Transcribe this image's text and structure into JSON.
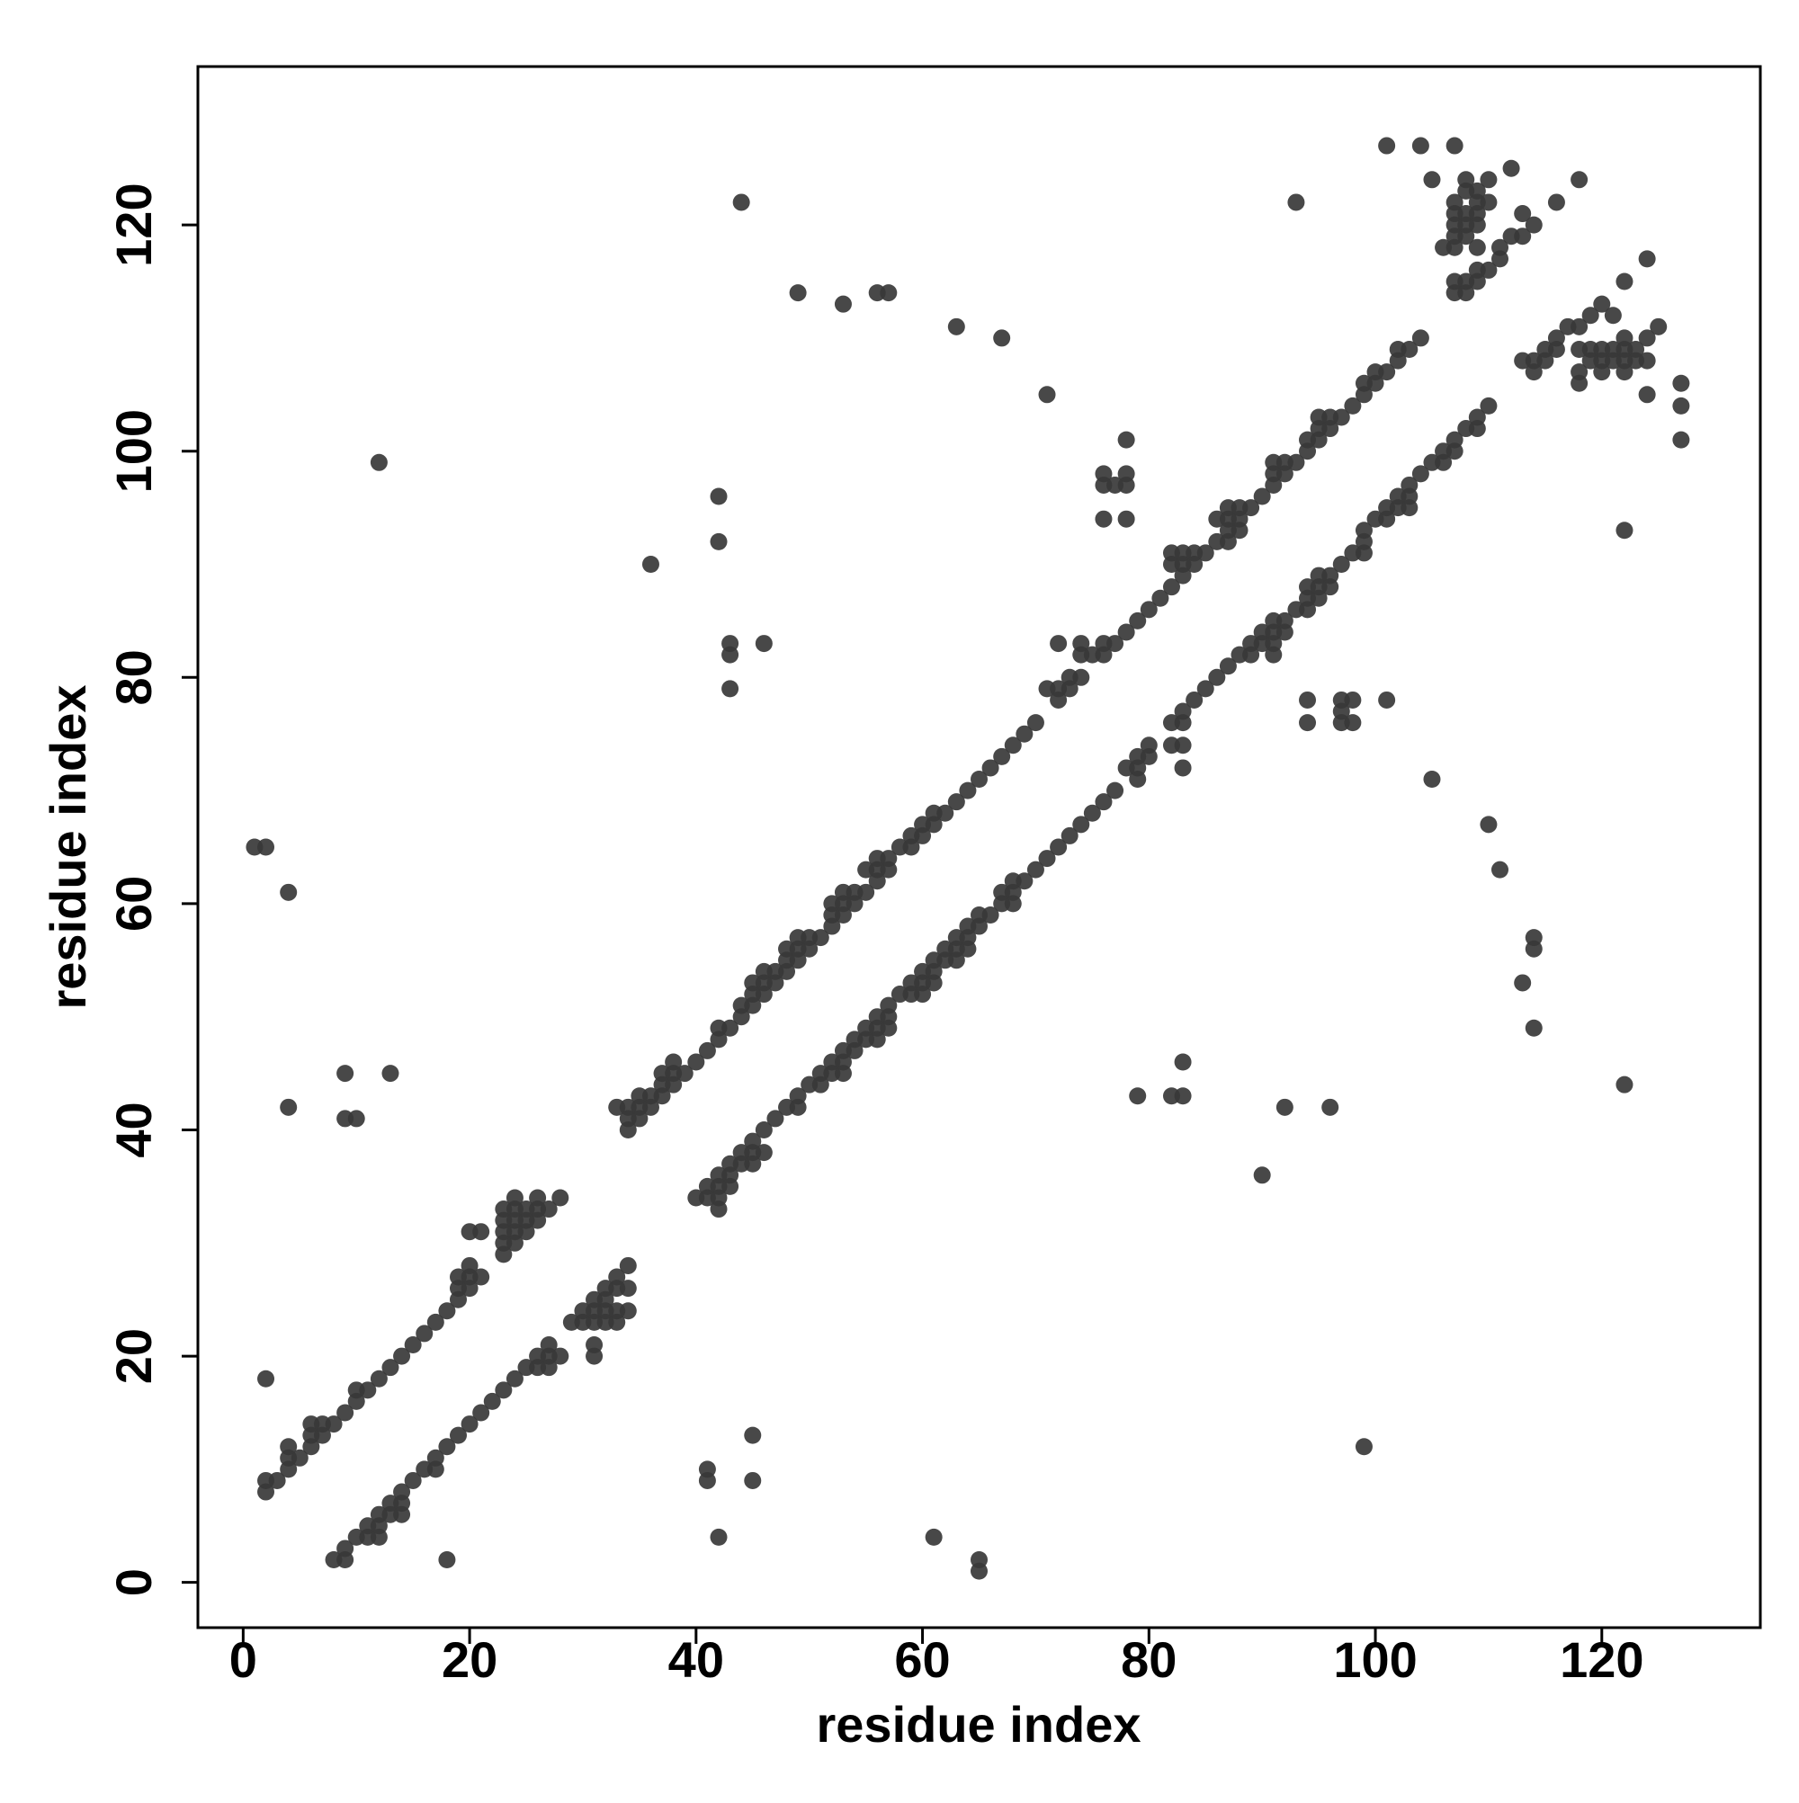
{
  "chart_data": {
    "type": "scatter",
    "xlabel": "residue index",
    "ylabel": "residue index",
    "color": "#383838",
    "xlim": [
      -4,
      134
    ],
    "ylim": [
      -4,
      134
    ],
    "xticks": [
      0,
      20,
      40,
      60,
      80,
      100,
      120
    ],
    "yticks": [
      0,
      20,
      40,
      60,
      80,
      100,
      120
    ],
    "grid": false,
    "x": [
      2,
      2,
      3,
      4,
      4,
      4,
      5,
      6,
      6,
      6,
      7,
      7,
      8,
      9,
      10,
      10,
      11,
      12,
      13,
      14,
      15,
      16,
      17,
      18,
      19,
      19,
      19,
      20,
      20,
      20,
      21,
      20,
      21,
      23,
      23,
      23,
      23,
      23,
      24,
      24,
      24,
      24,
      24,
      25,
      25,
      25,
      26,
      26,
      26,
      27,
      28,
      33,
      34,
      34,
      34,
      35,
      35,
      35,
      36,
      36,
      37,
      37,
      37,
      38,
      38,
      38,
      39,
      40,
      41,
      42,
      42,
      43,
      44,
      44,
      45,
      45,
      45,
      46,
      46,
      46,
      47,
      47,
      48,
      48,
      48,
      49,
      49,
      49,
      50,
      50,
      51,
      52,
      52,
      52,
      53,
      53,
      53,
      54,
      54,
      55,
      55,
      56,
      56,
      56,
      57,
      57,
      58,
      59,
      59,
      60,
      60,
      61,
      61,
      62,
      63,
      64,
      65,
      66,
      67,
      68,
      69,
      70,
      71,
      72,
      72,
      72,
      73,
      73,
      74,
      74,
      74,
      75,
      76,
      76,
      77,
      78,
      79,
      80,
      81,
      82,
      82,
      82,
      83,
      83,
      83,
      84,
      84,
      85,
      86,
      86,
      87,
      87,
      87,
      87,
      88,
      88,
      88,
      89,
      90,
      91,
      91,
      91,
      92,
      92,
      93,
      94,
      94,
      95,
      95,
      95,
      96,
      96,
      97,
      98,
      99,
      99,
      100,
      100,
      101,
      102,
      102,
      103,
      104,
      8,
      9,
      9,
      10,
      11,
      11,
      12,
      12,
      12,
      13,
      13,
      14,
      14,
      14,
      15,
      16,
      17,
      17,
      18,
      19,
      20,
      21,
      22,
      23,
      24,
      25,
      26,
      26,
      27,
      27,
      27,
      28,
      29,
      30,
      30,
      31,
      31,
      31,
      31,
      31,
      32,
      32,
      32,
      32,
      33,
      33,
      33,
      33,
      34,
      34,
      34,
      40,
      41,
      41,
      42,
      42,
      42,
      42,
      43,
      43,
      43,
      44,
      44,
      45,
      45,
      45,
      46,
      46,
      47,
      48,
      49,
      49,
      50,
      51,
      51,
      52,
      52,
      53,
      53,
      53,
      54,
      54,
      55,
      55,
      56,
      56,
      56,
      57,
      57,
      57,
      58,
      59,
      59,
      60,
      60,
      60,
      61,
      61,
      61,
      62,
      62,
      63,
      63,
      63,
      64,
      64,
      64,
      65,
      65,
      66,
      67,
      67,
      68,
      68,
      68,
      69,
      70,
      71,
      72,
      73,
      74,
      75,
      76,
      77,
      78,
      79,
      79,
      79,
      80,
      80,
      82,
      82,
      83,
      83,
      83,
      83,
      84,
      85,
      86,
      87,
      88,
      89,
      89,
      90,
      90,
      91,
      91,
      91,
      91,
      92,
      92,
      93,
      94,
      94,
      94,
      95,
      95,
      95,
      96,
      96,
      97,
      98,
      99,
      99,
      99,
      100,
      101,
      101,
      102,
      102,
      103,
      103,
      103,
      104,
      105,
      106,
      106,
      107,
      107,
      108,
      109,
      109,
      110,
      107,
      107,
      107,
      107,
      107,
      107,
      107,
      108,
      108,
      108,
      108,
      108,
      108,
      108,
      109,
      109,
      109,
      109,
      109,
      109,
      109,
      110,
      110,
      110,
      106,
      105,
      104,
      101,
      107,
      112,
      111,
      111,
      112,
      113,
      113,
      114,
      116,
      118,
      113,
      114,
      114,
      115,
      115,
      116,
      116,
      117,
      118,
      118,
      118,
      118,
      119,
      119,
      119,
      120,
      120,
      120,
      120,
      121,
      121,
      122,
      122,
      122,
      122,
      123,
      123,
      124,
      124,
      124,
      121,
      122,
      124,
      125,
      127,
      127,
      127,
      1,
      2,
      4,
      2,
      4,
      9,
      10,
      9,
      13,
      12,
      18,
      36,
      42,
      42,
      43,
      43,
      43,
      46,
      44,
      49,
      53,
      56,
      57,
      63,
      67,
      71,
      76,
      76,
      76,
      77,
      78,
      78,
      78,
      78,
      93,
      41,
      41,
      42,
      45,
      45,
      61,
      65,
      65,
      79,
      82,
      83,
      83,
      90,
      92,
      96,
      94,
      94,
      97,
      97,
      97,
      98,
      98,
      101,
      105,
      110,
      111,
      114,
      114,
      113,
      114,
      122,
      122,
      99
    ],
    "values": [
      8,
      9,
      9,
      10,
      11,
      12,
      11,
      12,
      13,
      14,
      13,
      14,
      14,
      15,
      16,
      17,
      17,
      18,
      19,
      20,
      21,
      22,
      23,
      24,
      25,
      26,
      27,
      26,
      27,
      28,
      27,
      31,
      31,
      29,
      30,
      31,
      32,
      33,
      30,
      31,
      32,
      33,
      34,
      31,
      32,
      33,
      32,
      33,
      34,
      33,
      34,
      42,
      40,
      41,
      42,
      41,
      42,
      43,
      42,
      43,
      43,
      44,
      45,
      44,
      45,
      46,
      45,
      46,
      47,
      48,
      49,
      49,
      50,
      51,
      51,
      52,
      53,
      52,
      53,
      54,
      53,
      54,
      54,
      55,
      56,
      55,
      56,
      57,
      56,
      57,
      57,
      58,
      59,
      60,
      59,
      60,
      61,
      60,
      61,
      61,
      63,
      62,
      63,
      64,
      63,
      64,
      65,
      65,
      66,
      66,
      67,
      67,
      68,
      68,
      69,
      70,
      71,
      72,
      73,
      74,
      75,
      76,
      79,
      78,
      79,
      83,
      79,
      80,
      80,
      82,
      83,
      82,
      82,
      83,
      83,
      84,
      85,
      86,
      87,
      88,
      90,
      91,
      89,
      90,
      91,
      90,
      91,
      91,
      92,
      94,
      92,
      93,
      94,
      95,
      93,
      94,
      95,
      95,
      96,
      97,
      98,
      99,
      98,
      99,
      99,
      100,
      101,
      101,
      102,
      103,
      102,
      103,
      103,
      104,
      105,
      106,
      106,
      107,
      107,
      108,
      109,
      109,
      110,
      2,
      2,
      3,
      4,
      4,
      5,
      4,
      5,
      6,
      6,
      7,
      6,
      7,
      8,
      9,
      10,
      10,
      11,
      12,
      13,
      14,
      15,
      16,
      17,
      18,
      19,
      19,
      20,
      19,
      20,
      21,
      20,
      23,
      23,
      24,
      20,
      21,
      23,
      24,
      25,
      23,
      24,
      25,
      26,
      23,
      24,
      26,
      27,
      24,
      26,
      28,
      34,
      34,
      35,
      33,
      34,
      35,
      36,
      35,
      36,
      37,
      37,
      38,
      37,
      38,
      39,
      38,
      40,
      41,
      42,
      42,
      43,
      44,
      44,
      45,
      45,
      46,
      45,
      46,
      47,
      47,
      48,
      48,
      49,
      48,
      49,
      50,
      49,
      50,
      51,
      52,
      52,
      53,
      52,
      53,
      54,
      53,
      54,
      55,
      55,
      56,
      55,
      56,
      57,
      56,
      57,
      58,
      58,
      59,
      59,
      60,
      61,
      60,
      61,
      62,
      62,
      63,
      64,
      65,
      66,
      67,
      68,
      69,
      70,
      72,
      71,
      72,
      73,
      73,
      74,
      74,
      76,
      72,
      74,
      76,
      77,
      78,
      79,
      80,
      81,
      82,
      82,
      83,
      83,
      84,
      82,
      83,
      84,
      85,
      84,
      85,
      86,
      86,
      87,
      88,
      87,
      88,
      89,
      88,
      89,
      90,
      91,
      91,
      92,
      93,
      94,
      94,
      95,
      95,
      96,
      95,
      96,
      97,
      98,
      99,
      99,
      100,
      100,
      101,
      102,
      102,
      103,
      104,
      114,
      115,
      118,
      119,
      120,
      121,
      122,
      114,
      115,
      119,
      120,
      121,
      123,
      124,
      115,
      116,
      118,
      120,
      121,
      122,
      123,
      116,
      122,
      124,
      118,
      124,
      127,
      127,
      127,
      125,
      117,
      118,
      119,
      119,
      121,
      120,
      122,
      124,
      108,
      107,
      108,
      108,
      109,
      109,
      110,
      111,
      111,
      109,
      107,
      106,
      108,
      109,
      112,
      107,
      108,
      109,
      113,
      108,
      109,
      107,
      108,
      109,
      110,
      108,
      109,
      108,
      110,
      105,
      112,
      115,
      117,
      111,
      106,
      104,
      101,
      65,
      65,
      61,
      18,
      42,
      41,
      41,
      45,
      45,
      99,
      2,
      90,
      96,
      92,
      82,
      83,
      79,
      83,
      122,
      114,
      113,
      114,
      114,
      111,
      110,
      105,
      94,
      97,
      98,
      97,
      97,
      98,
      101,
      94,
      122,
      9,
      10,
      4,
      9,
      13,
      4,
      1,
      2,
      43,
      43,
      43,
      46,
      36,
      42,
      42,
      76,
      78,
      76,
      77,
      78,
      76,
      78,
      78,
      71,
      67,
      63,
      57,
      56,
      53,
      49,
      44,
      93,
      12
    ]
  }
}
